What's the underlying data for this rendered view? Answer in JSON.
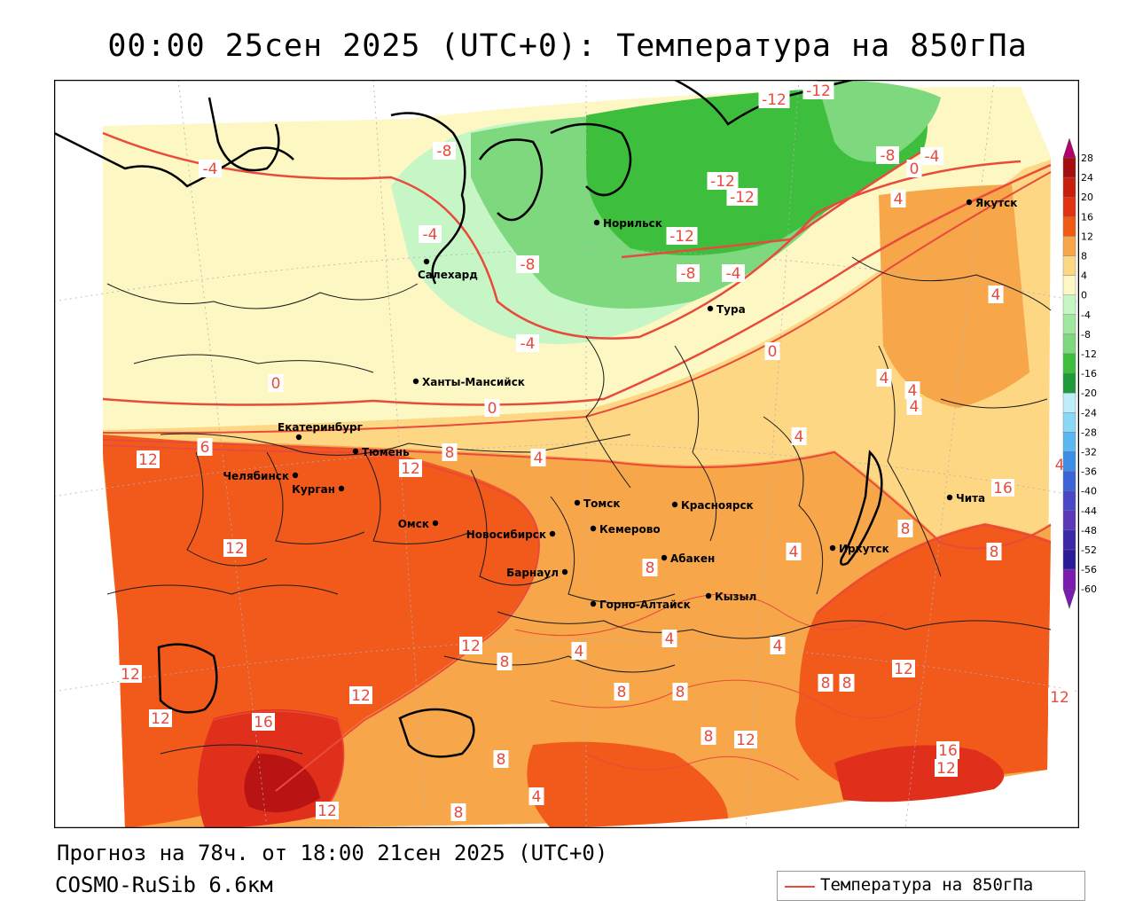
{
  "header": {
    "title": "00:00 25сен 2025 (UTC+0): Температура на 850гПа"
  },
  "footer": {
    "forecast": "Прогноз на 78ч. от 18:00 21сен 2025 (UTC+0)",
    "model": "COSMO-RuSib 6.6км"
  },
  "legend": {
    "label": "Температура на 850гПа",
    "line_color": "#e84a3c"
  },
  "colors": {
    "t_neg12": "#3dbf3d",
    "t_neg8": "#7ed87e",
    "t_neg4": "#c6f5c6",
    "t_0": "#fdf7c3",
    "t_4": "#fdd783",
    "t_8": "#f7a64a",
    "t_12": "#f25a1c",
    "t_16": "#e0301b",
    "t_20": "#b81414",
    "contour": "#e84a3c"
  },
  "colorbar": {
    "ticks": [
      "28",
      "24",
      "20",
      "16",
      "12",
      "8",
      "4",
      "0",
      "-4",
      "-8",
      "-12",
      "-16",
      "-20",
      "-24",
      "-28",
      "-32",
      "-36",
      "-40",
      "-44",
      "-48",
      "-52",
      "-56",
      "-60"
    ],
    "colors": [
      "#b3006e",
      "#a50e0e",
      "#c81e0e",
      "#e23214",
      "#f05a14",
      "#f7a64a",
      "#fdd783",
      "#fdf7c3",
      "#c6f5c6",
      "#a0e8a0",
      "#7ed87e",
      "#3dbf3d",
      "#1f9a3a",
      "#bdeefa",
      "#8ad8f5",
      "#5cb8f0",
      "#3c8ee6",
      "#3a64d8",
      "#4a48c8",
      "#5a38b8",
      "#3a28a8",
      "#2a1c98",
      "#7a1cb0"
    ]
  },
  "cities": [
    {
      "name": "Якутск"
    },
    {
      "name": "Норильск"
    },
    {
      "name": "Салехард"
    },
    {
      "name": "Тура"
    },
    {
      "name": "Ханты-Мансийск"
    },
    {
      "name": "Екатеринбург"
    },
    {
      "name": "Тюмень"
    },
    {
      "name": "Челябинск"
    },
    {
      "name": "Курган"
    },
    {
      "name": "Омск"
    },
    {
      "name": "Новосибирск"
    },
    {
      "name": "Томск"
    },
    {
      "name": "Красноярск"
    },
    {
      "name": "Кемерово"
    },
    {
      "name": "Барнаул"
    },
    {
      "name": "Абакен"
    },
    {
      "name": "Кызыл"
    },
    {
      "name": "Горно-Алтайск"
    },
    {
      "name": "Иркутск"
    },
    {
      "name": "Чита"
    }
  ],
  "contour_labels": [
    "-12",
    "-12",
    "-12",
    "-12",
    "-12",
    "-8",
    "-8",
    "-8",
    "-8",
    "-4",
    "-4",
    "-4",
    "-4",
    "-4",
    "0",
    "0",
    "0",
    "0",
    "4",
    "4",
    "4",
    "4",
    "4",
    "4",
    "4",
    "4",
    "4",
    "4",
    "4",
    "4",
    "8",
    "8",
    "8",
    "8",
    "8",
    "8",
    "8",
    "8",
    "8",
    "8",
    "8",
    "8",
    "12",
    "12",
    "12",
    "12",
    "12",
    "12",
    "12",
    "12",
    "12",
    "12",
    "12",
    "12",
    "16",
    "16",
    "16",
    "6",
    "4"
  ]
}
